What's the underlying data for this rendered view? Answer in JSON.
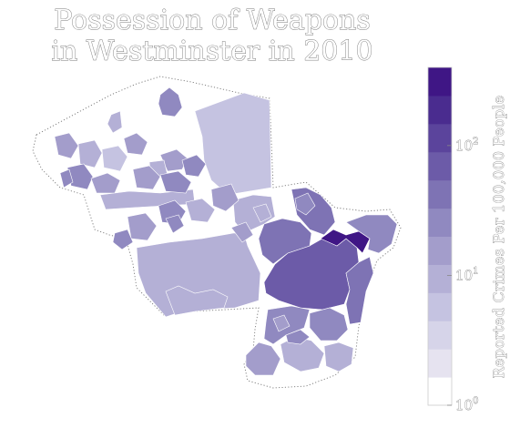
{
  "title": {
    "line1": "Possession of Weapons",
    "line2": "in Westminster in 2010"
  },
  "colorbar": {
    "label": "Reported Crimes Per 100,000 People",
    "scale": "log",
    "range": [
      1,
      400
    ],
    "ticks": [
      {
        "base": "10",
        "exp": "0",
        "value": 1
      },
      {
        "base": "10",
        "exp": "1",
        "value": 10
      },
      {
        "base": "10",
        "exp": "2",
        "value": 100
      }
    ],
    "colors": [
      "#ffffff",
      "#e6e3f0",
      "#d6d4e9",
      "#c5c3e1",
      "#b4b0d6",
      "#a39dcb",
      "#9089c0",
      "#7e73b4",
      "#6c5ba8",
      "#5b449c",
      "#4a2c8f",
      "#3f1685"
    ]
  },
  "map": {
    "regions": [
      {
        "id": "central-large",
        "value": 70
      },
      {
        "id": "east-top",
        "value": 350
      },
      {
        "id": "east-right",
        "value": 30
      },
      {
        "id": "east-mid",
        "value": 45
      },
      {
        "id": "east-strip",
        "value": 40
      },
      {
        "id": "south-tail-a",
        "value": 28
      },
      {
        "id": "south-tail-b",
        "value": 16
      },
      {
        "id": "south-tail-c",
        "value": 12
      },
      {
        "id": "south-c",
        "value": 20
      },
      {
        "id": "south-d",
        "value": 9
      },
      {
        "id": "south-e",
        "value": 22
      },
      {
        "id": "west-large",
        "value": 9
      },
      {
        "id": "west-sw",
        "value": 8
      },
      {
        "id": "north-east-large",
        "value": 6
      },
      {
        "id": "north-top",
        "value": 28
      },
      {
        "id": "north-small",
        "value": 10
      },
      {
        "id": "center-a",
        "value": 13
      },
      {
        "id": "center-b",
        "value": 20
      },
      {
        "id": "center-c",
        "value": 24
      },
      {
        "id": "center-d",
        "value": 8
      },
      {
        "id": "center-e",
        "value": 16
      },
      {
        "id": "east-blob",
        "value": 26
      },
      {
        "id": "mid-purple",
        "value": 35
      },
      {
        "id": "mid-light",
        "value": 11
      },
      {
        "id": "nw-a",
        "value": 16
      },
      {
        "id": "nw-b",
        "value": 9
      },
      {
        "id": "nw-c",
        "value": 24
      },
      {
        "id": "nw-d",
        "value": 6
      },
      {
        "id": "nw-e",
        "value": 13
      },
      {
        "id": "nw-f",
        "value": 30
      },
      {
        "id": "n-a",
        "value": 16
      },
      {
        "id": "n-b",
        "value": 13
      },
      {
        "id": "n-c",
        "value": 22
      },
      {
        "id": "n-d",
        "value": 9
      },
      {
        "id": "c-strip",
        "value": 10
      },
      {
        "id": "c-small",
        "value": 26
      },
      {
        "id": "c-mid",
        "value": 15
      },
      {
        "id": "west-blob",
        "value": 24
      },
      {
        "id": "e-small-1",
        "value": 18
      },
      {
        "id": "e-small-2",
        "value": 12
      },
      {
        "id": "e-small-3",
        "value": 14
      }
    ]
  }
}
